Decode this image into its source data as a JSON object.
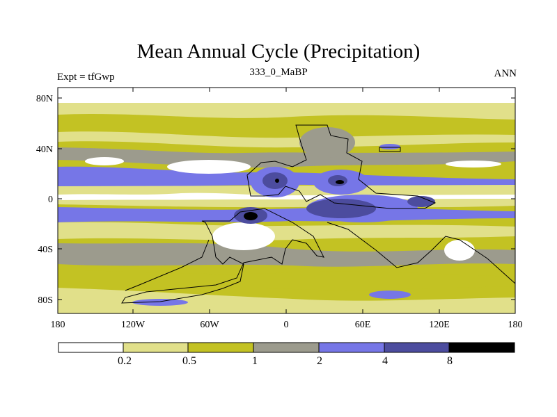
{
  "title": "Mean Annual Cycle (Precipitation)",
  "subtitle_left": "Expt = tfGwp",
  "subtitle_center": "333_0_MaBP",
  "subtitle_right": "ANN",
  "map": {
    "lat_ticks": [
      "80N",
      "40N",
      "0",
      "40S",
      "80S"
    ],
    "lon_ticks": [
      "180",
      "120W",
      "60W",
      "0",
      "60E",
      "120E",
      "180"
    ]
  },
  "colors": {
    "c0": "#ffffff",
    "c1": "#e1e08a",
    "c2": "#c3c223",
    "c3": "#9c9b8d",
    "c4": "#7676e7",
    "c5": "#4c4c9e",
    "c6": "#000000"
  },
  "legend": {
    "colors": [
      "#ffffff",
      "#e1e08a",
      "#c3c223",
      "#9c9b8d",
      "#7676e7",
      "#4c4c9e",
      "#000000"
    ],
    "labels": [
      "0.2",
      "0.5",
      "1",
      "2",
      "4",
      "8"
    ]
  }
}
